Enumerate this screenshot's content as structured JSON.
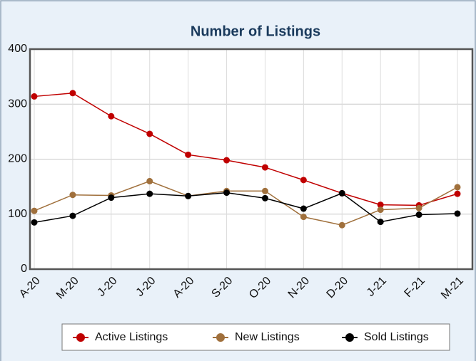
{
  "chart_data": {
    "type": "line",
    "title": "Number of Listings",
    "categories": [
      "A-20",
      "M-20",
      "J-20",
      "J-20",
      "A-20",
      "S-20",
      "O-20",
      "N-20",
      "D-20",
      "J-21",
      "F-21",
      "M-21"
    ],
    "series": [
      {
        "name": "Active Listings",
        "color": "#c00000",
        "values": [
          314,
          320,
          278,
          246,
          208,
          198,
          185,
          162,
          138,
          117,
          116,
          137
        ]
      },
      {
        "name": "New Listings",
        "color": "#a0703c",
        "values": [
          106,
          135,
          134,
          160,
          133,
          142,
          142,
          95,
          80,
          108,
          111,
          149
        ]
      },
      {
        "name": "Sold Listings",
        "color": "#000000",
        "values": [
          85,
          97,
          130,
          137,
          133,
          139,
          129,
          110,
          138,
          86,
          99,
          101
        ]
      }
    ],
    "ylim": [
      0,
      400
    ],
    "yticks": [
      0,
      100,
      200,
      300,
      400
    ],
    "grid": true,
    "legend": "bottom"
  }
}
